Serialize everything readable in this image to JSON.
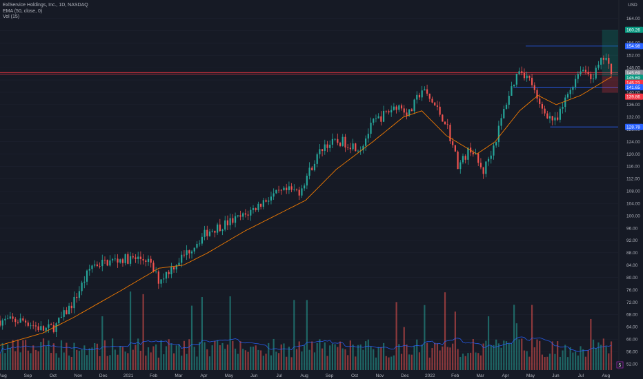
{
  "header": {
    "line1": "ExlService Holdings, Inc., 1D, NASDAQ",
    "line2": "EMA (50, close, 0)",
    "line3": "Vol (15)"
  },
  "chart_data": {
    "type": "candlestick",
    "currency_label": "USD",
    "price_axis_ticks": [
      52,
      56,
      60,
      64,
      68,
      72,
      76,
      80,
      84,
      88,
      92,
      96,
      100,
      104,
      108,
      112,
      116,
      120,
      124,
      128,
      132,
      136,
      140,
      144,
      148,
      152,
      156,
      160,
      164
    ],
    "price_range": [
      50,
      165
    ],
    "time_axis_labels": [
      "Aug",
      "Sep",
      "Oct",
      "Nov",
      "Dec",
      "2021",
      "Feb",
      "Mar",
      "Apr",
      "May",
      "Jun",
      "Jul",
      "Aug",
      "Sep",
      "Oct",
      "Nov",
      "Dec",
      "2022",
      "Feb",
      "Mar",
      "Apr",
      "May",
      "Jun",
      "Jul",
      "Aug"
    ],
    "price_path": [
      [
        0,
        66
      ],
      [
        0.04,
        66
      ],
      [
        0.07,
        63
      ],
      [
        0.09,
        64
      ],
      [
        0.12,
        72
      ],
      [
        0.15,
        84
      ],
      [
        0.2,
        86
      ],
      [
        0.24,
        86
      ],
      [
        0.26,
        79
      ],
      [
        0.3,
        87
      ],
      [
        0.34,
        95
      ],
      [
        0.4,
        100
      ],
      [
        0.44,
        106
      ],
      [
        0.47,
        108
      ],
      [
        0.49,
        108
      ],
      [
        0.51,
        116
      ],
      [
        0.53,
        123
      ],
      [
        0.56,
        124
      ],
      [
        0.59,
        122
      ],
      [
        0.61,
        130
      ],
      [
        0.65,
        136
      ],
      [
        0.67,
        133
      ],
      [
        0.69,
        141
      ],
      [
        0.71,
        136
      ],
      [
        0.73,
        130
      ],
      [
        0.75,
        116
      ],
      [
        0.77,
        122
      ],
      [
        0.79,
        114
      ],
      [
        0.81,
        124
      ],
      [
        0.83,
        138
      ],
      [
        0.85,
        148
      ],
      [
        0.87,
        143
      ],
      [
        0.88,
        136
      ],
      [
        0.91,
        130
      ],
      [
        0.93,
        140
      ],
      [
        0.95,
        148
      ],
      [
        0.97,
        145
      ],
      [
        0.99,
        152
      ],
      [
        1.0,
        145
      ]
    ],
    "ema_50": [
      [
        0,
        58
      ],
      [
        0.07,
        62
      ],
      [
        0.12,
        67
      ],
      [
        0.2,
        76
      ],
      [
        0.26,
        83
      ],
      [
        0.3,
        84
      ],
      [
        0.34,
        88
      ],
      [
        0.4,
        95
      ],
      [
        0.46,
        101
      ],
      [
        0.5,
        105
      ],
      [
        0.55,
        115
      ],
      [
        0.59,
        121
      ],
      [
        0.61,
        124
      ],
      [
        0.66,
        132
      ],
      [
        0.69,
        134
      ],
      [
        0.73,
        126
      ],
      [
        0.78,
        120
      ],
      [
        0.81,
        124
      ],
      [
        0.85,
        134
      ],
      [
        0.88,
        139
      ],
      [
        0.91,
        136
      ],
      [
        0.95,
        139
      ],
      [
        1.0,
        145
      ]
    ],
    "horizontal_lines": [
      {
        "price": 146.4,
        "color": "#f23645",
        "full_width": true
      },
      {
        "price": 145.9,
        "color": "#f23645",
        "full_width": true
      },
      {
        "price": 154.98,
        "color": "#2962ff",
        "from": 0.86
      },
      {
        "price": 141.65,
        "color": "#2962ff",
        "from": 0.84
      },
      {
        "price": 128.78,
        "color": "#2962ff",
        "from": 0.9
      }
    ],
    "position_tool": {
      "entry": 145.21,
      "stop": 139.86,
      "target": 160.26
    },
    "price_badges": [
      {
        "label": "160.26",
        "bg": "#089981"
      },
      {
        "label": "154.98",
        "bg": "#2962ff"
      },
      {
        "label": "145.69",
        "bg": "#8a8e99"
      },
      {
        "label": "145.69",
        "bg": "#089981"
      },
      {
        "label": "145.21",
        "bg": "#f23645"
      },
      {
        "label": "141.65",
        "bg": "#2962ff"
      },
      {
        "label": "139.86",
        "bg": "#f23645"
      },
      {
        "label": "128.78",
        "bg": "#2962ff"
      }
    ],
    "colors": {
      "up": "#26a69a",
      "down": "#ef5350",
      "ema": "#f57c00",
      "vol_ma": "#2962ff",
      "grid": "#1f2330"
    }
  },
  "misc": {
    "flag_label": "5"
  }
}
